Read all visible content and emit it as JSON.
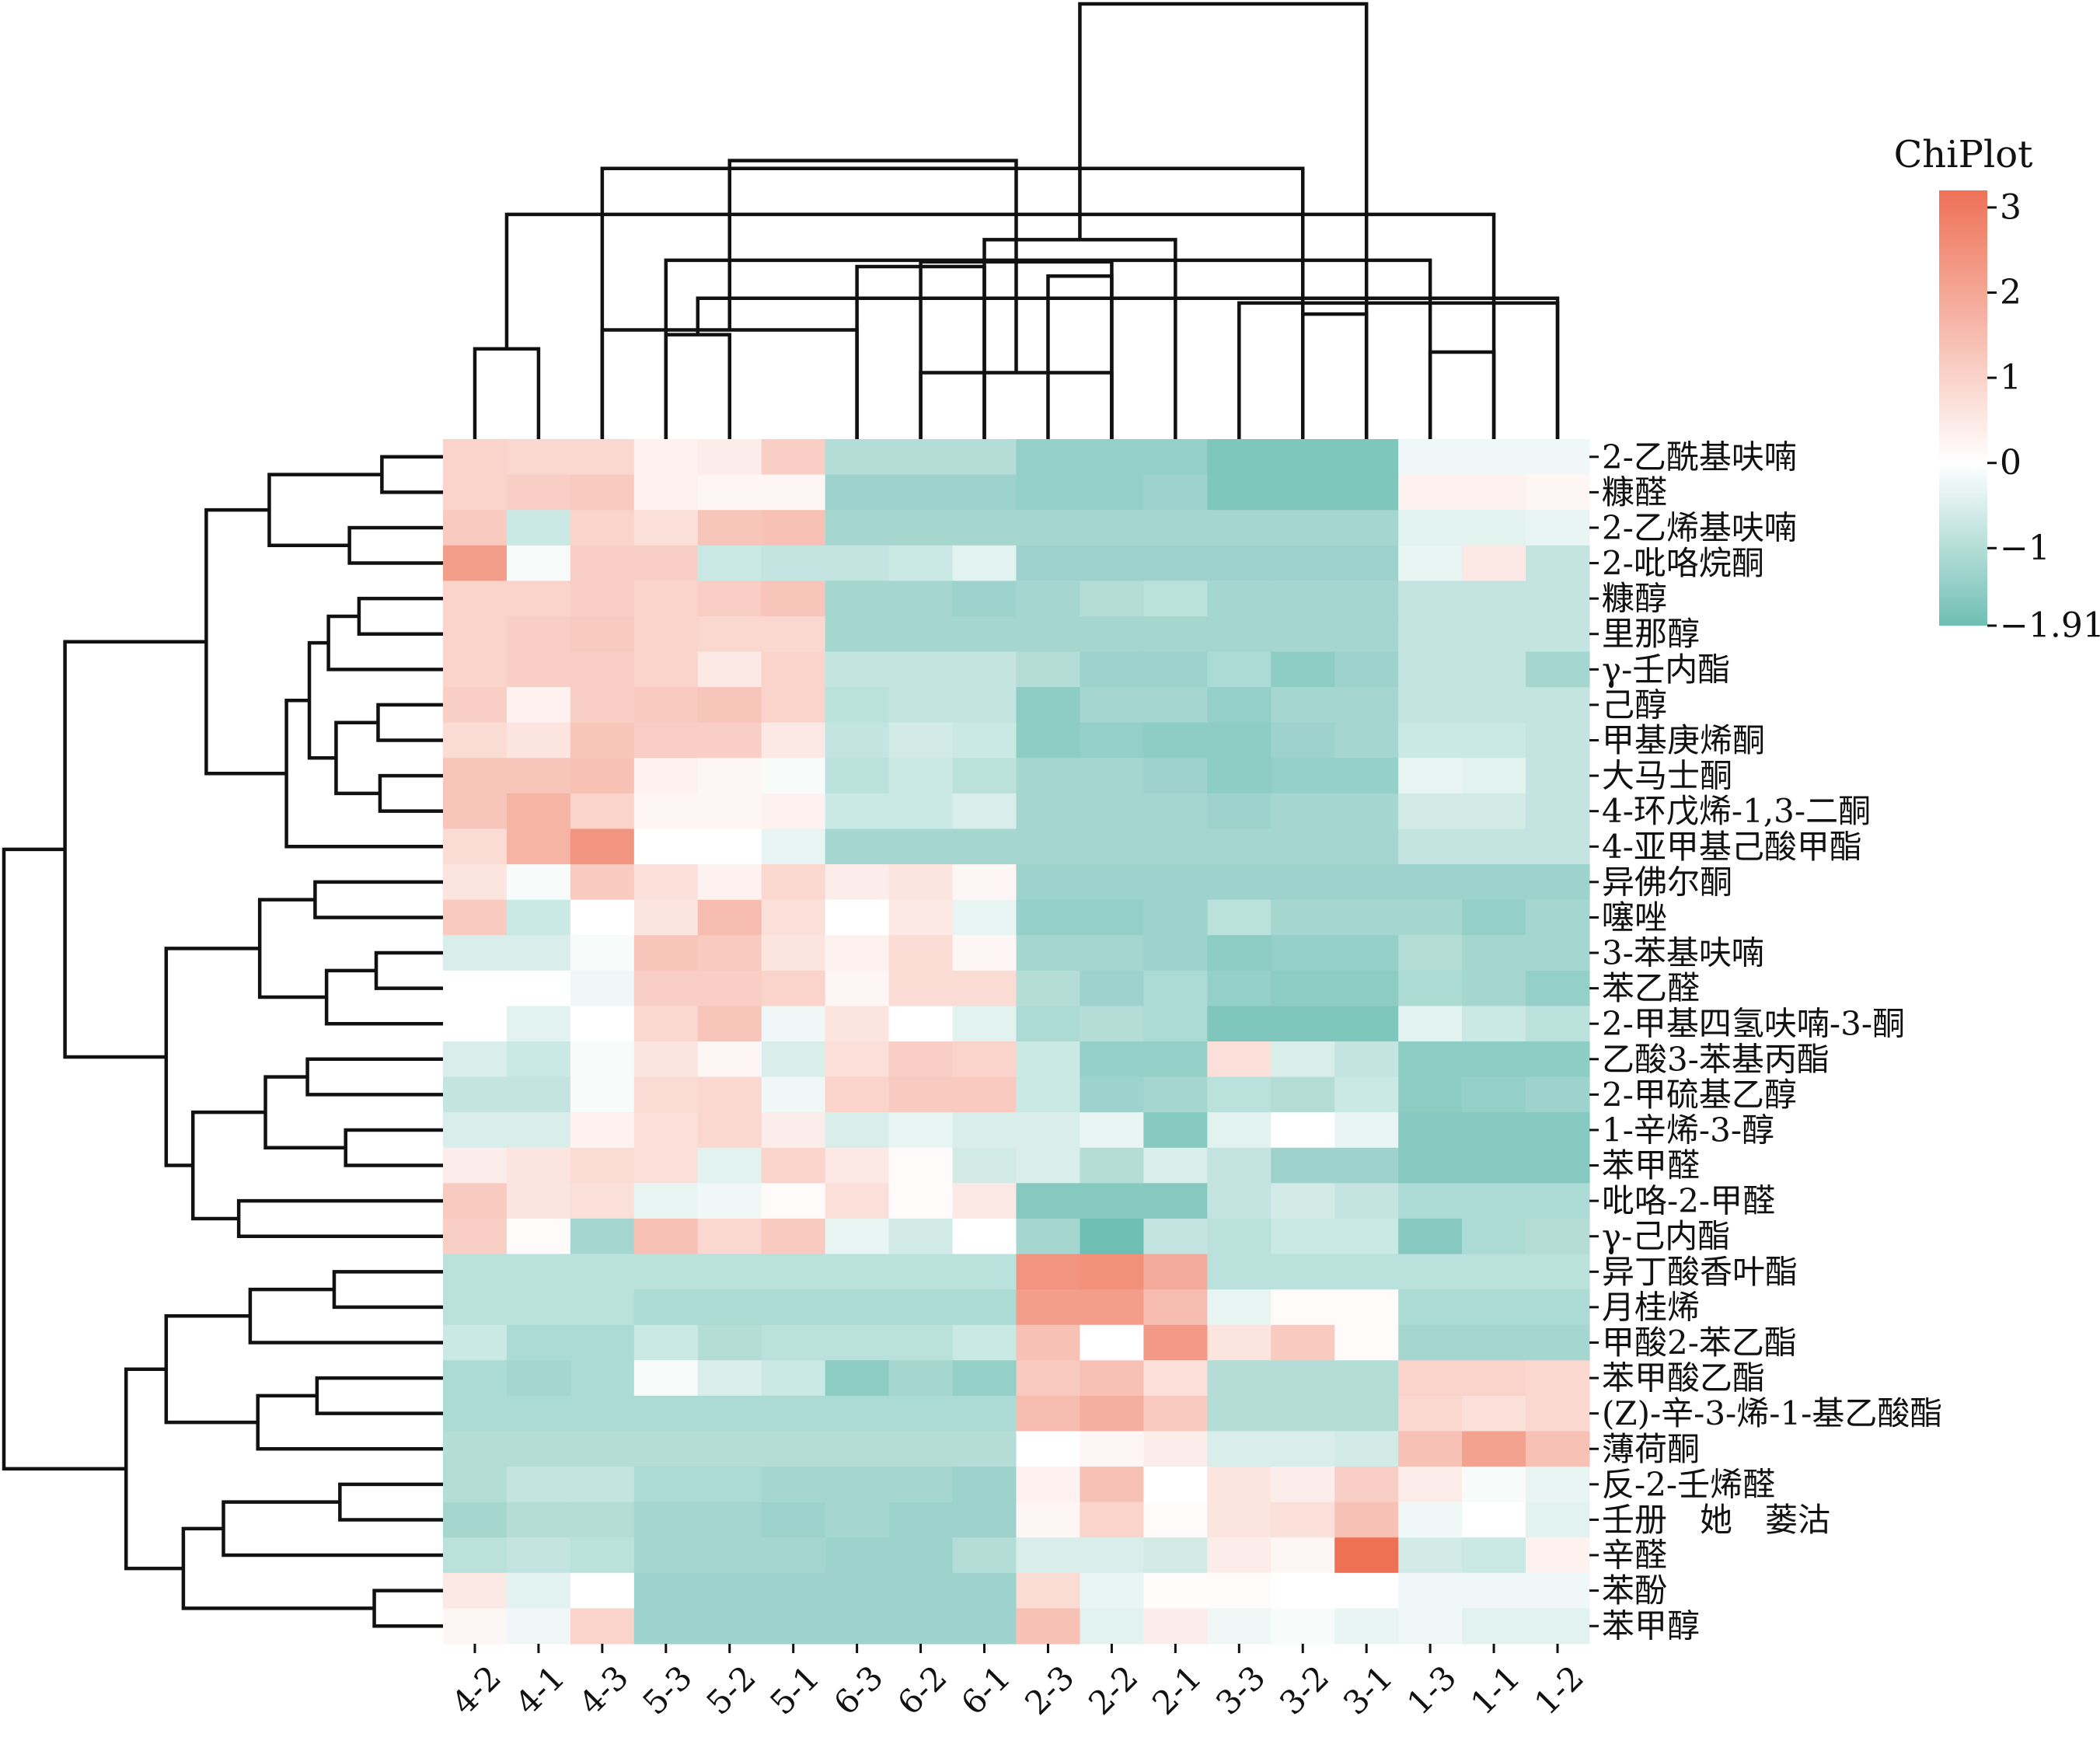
{
  "chart_data": {
    "type": "heatmap",
    "title": "",
    "columns": [
      "4-2",
      "4-1",
      "4-3",
      "5-3",
      "5-2",
      "5-1",
      "6-3",
      "6-2",
      "6-1",
      "2-3",
      "2-2",
      "2-1",
      "3-3",
      "3-2",
      "3-1",
      "1-3",
      "1-1",
      "1-2"
    ],
    "rows": [
      "2-乙酰基呋喃",
      "糠醛",
      "2-乙烯基呋喃",
      "2-吡咯烷酮",
      "糠醇",
      "里那醇",
      "γ-壬内酯",
      "己醇",
      "甲基庚烯酮",
      "大马士酮",
      "4-环戊烯-1,3-二酮",
      "4-亚甲基己酸甲酯",
      "异佛尔酮",
      "噻唑",
      "3-苯基呋喃",
      "苯乙醛",
      "2-甲基四氢呋喃-3-酮",
      "乙酸3-苯基丙酯",
      "2-甲硫基乙醇",
      "1-辛烯-3-醇",
      "苯甲醛",
      "吡咯-2-甲醛",
      "γ-己内酯",
      "异丁酸香叶酯",
      "月桂烯",
      "甲酸2-苯乙酯",
      "苯甲酸乙酯",
      "(Z)-辛-3-烯-1-基乙酸酯",
      "薄荷酮",
      "反-2-壬烯醛",
      "壬册　她　蒌沽",
      "辛醛",
      "苯酚",
      "苯甲醇"
    ],
    "values": [
      [
        1.0,
        0.9,
        0.9,
        0.3,
        0.4,
        1.1,
        -1.0,
        -1.0,
        -1.0,
        -1.4,
        -1.4,
        -1.4,
        -1.7,
        -1.7,
        -1.7,
        -0.2,
        -0.2,
        -0.2
      ],
      [
        1.0,
        1.1,
        1.2,
        0.3,
        0.2,
        0.2,
        -1.3,
        -1.3,
        -1.3,
        -1.4,
        -1.4,
        -1.3,
        -1.7,
        -1.7,
        -1.7,
        0.3,
        0.3,
        0.2
      ],
      [
        1.2,
        -0.7,
        1.0,
        0.7,
        1.3,
        1.4,
        -1.2,
        -1.2,
        -1.2,
        -1.2,
        -1.2,
        -1.2,
        -1.2,
        -1.2,
        -1.2,
        -0.4,
        -0.4,
        -0.3
      ],
      [
        2.2,
        -0.1,
        1.1,
        1.1,
        -0.7,
        -0.8,
        -0.8,
        -0.7,
        -0.4,
        -1.3,
        -1.3,
        -1.3,
        -1.3,
        -1.3,
        -1.3,
        -0.3,
        0.5,
        -0.8
      ],
      [
        1.0,
        1.0,
        1.1,
        1.0,
        1.1,
        1.3,
        -1.2,
        -1.2,
        -1.3,
        -1.2,
        -1.0,
        -0.9,
        -1.2,
        -1.2,
        -1.2,
        -0.8,
        -0.8,
        -0.8
      ],
      [
        1.0,
        1.1,
        1.2,
        1.0,
        0.9,
        0.9,
        -1.2,
        -1.2,
        -1.2,
        -1.2,
        -1.2,
        -1.2,
        -1.2,
        -1.2,
        -1.2,
        -0.8,
        -0.8,
        -0.8
      ],
      [
        1.0,
        1.1,
        1.1,
        1.0,
        0.5,
        1.0,
        -0.8,
        -0.8,
        -0.8,
        -1.0,
        -1.3,
        -1.3,
        -1.1,
        -1.5,
        -1.3,
        -0.8,
        -0.8,
        -1.2
      ],
      [
        1.1,
        0.3,
        1.1,
        1.2,
        1.3,
        1.0,
        -0.9,
        -0.8,
        -0.8,
        -1.5,
        -1.2,
        -1.2,
        -1.4,
        -1.2,
        -1.2,
        -0.8,
        -0.8,
        -0.8
      ],
      [
        0.8,
        0.6,
        1.3,
        1.1,
        1.1,
        0.5,
        -0.8,
        -0.6,
        -0.7,
        -1.5,
        -1.4,
        -1.5,
        -1.5,
        -1.3,
        -1.2,
        -0.7,
        -0.7,
        -0.8
      ],
      [
        1.3,
        1.3,
        1.4,
        0.3,
        0.2,
        -0.1,
        -0.9,
        -0.7,
        -0.9,
        -1.2,
        -1.2,
        -1.3,
        -1.5,
        -1.4,
        -1.4,
        -0.3,
        -0.4,
        -0.8
      ],
      [
        1.3,
        1.7,
        1.0,
        0.2,
        0.2,
        0.3,
        -0.7,
        -0.7,
        -0.5,
        -1.2,
        -1.2,
        -1.2,
        -1.3,
        -1.2,
        -1.2,
        -0.6,
        -0.6,
        -0.8
      ],
      [
        0.8,
        1.7,
        2.4,
        0.0,
        0.0,
        -0.3,
        -1.2,
        -1.2,
        -1.2,
        -1.2,
        -1.2,
        -1.2,
        -1.2,
        -1.2,
        -1.2,
        -0.8,
        -0.8,
        -0.8
      ],
      [
        0.6,
        -0.1,
        1.2,
        0.7,
        0.3,
        0.9,
        0.4,
        0.6,
        0.2,
        -1.3,
        -1.3,
        -1.3,
        -1.3,
        -1.3,
        -1.3,
        -1.3,
        -1.3,
        -1.3
      ],
      [
        1.2,
        -0.7,
        0.0,
        0.6,
        1.5,
        0.7,
        0.0,
        0.5,
        -0.3,
        -1.4,
        -1.4,
        -1.3,
        -0.9,
        -1.2,
        -1.2,
        -1.2,
        -1.4,
        -1.2
      ],
      [
        -0.5,
        -0.5,
        -0.1,
        1.3,
        1.2,
        0.6,
        0.3,
        0.8,
        0.2,
        -1.2,
        -1.2,
        -1.3,
        -1.5,
        -1.4,
        -1.4,
        -1.0,
        -1.2,
        -1.2
      ],
      [
        0.0,
        0.0,
        -0.2,
        1.1,
        1.1,
        1.0,
        0.2,
        0.8,
        0.8,
        -1.0,
        -1.3,
        -1.1,
        -1.4,
        -1.5,
        -1.5,
        -1.1,
        -1.2,
        -1.4
      ],
      [
        0.0,
        -0.4,
        0.0,
        0.9,
        1.3,
        -0.2,
        0.6,
        0.0,
        -0.4,
        -1.1,
        -1.0,
        -1.1,
        -1.7,
        -1.7,
        -1.7,
        -0.4,
        -0.7,
        -0.9
      ],
      [
        -0.5,
        -0.7,
        -0.1,
        0.6,
        0.2,
        -0.5,
        0.7,
        1.1,
        1.0,
        -0.7,
        -1.4,
        -1.4,
        0.7,
        -0.5,
        -0.8,
        -1.5,
        -1.5,
        -1.5
      ],
      [
        -0.8,
        -0.8,
        -0.1,
        0.8,
        0.9,
        -0.2,
        1.0,
        1.2,
        1.2,
        -0.7,
        -1.3,
        -1.2,
        -0.9,
        -1.0,
        -0.7,
        -1.5,
        -1.4,
        -1.3
      ],
      [
        -0.5,
        -0.5,
        0.3,
        0.7,
        0.9,
        0.4,
        -0.5,
        -0.3,
        -0.5,
        -0.5,
        -0.3,
        -1.6,
        -0.4,
        0.0,
        -0.3,
        -1.6,
        -1.6,
        -1.6
      ],
      [
        0.4,
        0.6,
        0.8,
        0.7,
        -0.4,
        1.0,
        0.5,
        0.1,
        -0.6,
        -0.5,
        -1.0,
        -0.5,
        -0.8,
        -1.3,
        -1.3,
        -1.6,
        -1.6,
        -1.6
      ],
      [
        1.2,
        0.6,
        0.7,
        -0.3,
        -0.2,
        0.1,
        0.7,
        0.1,
        0.5,
        -1.6,
        -1.6,
        -1.6,
        -0.8,
        -0.6,
        -0.8,
        -1.1,
        -1.1,
        -1.1
      ],
      [
        1.1,
        0.1,
        -1.2,
        1.4,
        0.9,
        1.2,
        -0.3,
        -0.6,
        0.0,
        -1.2,
        -1.9,
        -0.8,
        -0.9,
        -0.7,
        -0.7,
        -1.6,
        -1.1,
        -1.0
      ],
      [
        -0.9,
        -0.9,
        -0.9,
        -0.9,
        -0.9,
        -0.9,
        -0.9,
        -0.9,
        -0.9,
        2.4,
        2.5,
        1.9,
        -0.9,
        -0.9,
        -0.9,
        -0.9,
        -0.9,
        -0.9
      ],
      [
        -0.9,
        -0.9,
        -0.9,
        -1.1,
        -1.1,
        -1.1,
        -1.1,
        -1.1,
        -1.1,
        2.2,
        2.2,
        1.5,
        -0.3,
        0.1,
        0.1,
        -1.1,
        -1.1,
        -1.1
      ],
      [
        -0.7,
        -1.1,
        -1.1,
        -0.7,
        -1.0,
        -0.9,
        -0.9,
        -0.9,
        -0.7,
        1.4,
        0.0,
        2.3,
        0.6,
        1.2,
        0.1,
        -1.2,
        -1.2,
        -1.2
      ],
      [
        -1.1,
        -1.2,
        -1.1,
        -0.1,
        -0.5,
        -0.7,
        -1.5,
        -1.2,
        -1.4,
        1.2,
        1.4,
        0.7,
        -1.0,
        -1.0,
        -1.0,
        1.0,
        1.0,
        0.9
      ],
      [
        -1.1,
        -1.1,
        -1.1,
        -1.1,
        -1.1,
        -1.1,
        -1.1,
        -1.1,
        -1.1,
        1.5,
        1.8,
        1.2,
        -1.0,
        -1.0,
        -1.0,
        0.9,
        0.7,
        0.9
      ],
      [
        -1.0,
        -1.0,
        -1.0,
        -1.0,
        -1.0,
        -1.0,
        -1.0,
        -1.0,
        -1.0,
        0.0,
        0.2,
        0.4,
        -0.5,
        -0.5,
        -0.6,
        1.4,
        2.1,
        1.4
      ],
      [
        -1.0,
        -0.8,
        -0.8,
        -1.1,
        -1.1,
        -1.2,
        -1.2,
        -1.2,
        -1.3,
        0.3,
        1.4,
        0.0,
        0.6,
        0.4,
        1.1,
        0.4,
        -0.1,
        -0.3
      ],
      [
        -1.2,
        -1.0,
        -1.0,
        -1.2,
        -1.2,
        -1.3,
        -1.2,
        -1.3,
        -1.3,
        0.2,
        1.0,
        0.1,
        0.6,
        0.7,
        1.4,
        -0.2,
        0.0,
        -0.4
      ],
      [
        -0.9,
        -0.8,
        -0.9,
        -1.2,
        -1.2,
        -1.2,
        -1.3,
        -1.3,
        -1.0,
        -0.5,
        -0.5,
        -0.6,
        0.4,
        0.2,
        3.2,
        -0.6,
        -0.7,
        0.3
      ],
      [
        0.5,
        -0.4,
        0.0,
        -1.3,
        -1.3,
        -1.3,
        -1.3,
        -1.3,
        -1.3,
        0.8,
        -0.3,
        0.1,
        0.1,
        0.0,
        0.0,
        -0.2,
        -0.2,
        -0.2
      ],
      [
        0.2,
        -0.2,
        1.0,
        -1.3,
        -1.3,
        -1.3,
        -1.3,
        -1.3,
        -1.3,
        1.4,
        -0.4,
        0.4,
        -0.2,
        -0.1,
        -0.3,
        -0.2,
        -0.4,
        -0.4
      ]
    ],
    "colormap": {
      "low": "#6fbfb4",
      "mid": "#ffffff",
      "high": "#ee7156",
      "min": -1.91,
      "max": 3.2
    },
    "legend": {
      "title": "ChiPlot",
      "ticks": [
        {
          "value": 3,
          "label": "3"
        },
        {
          "value": 2,
          "label": "2"
        },
        {
          "value": 1,
          "label": "1"
        },
        {
          "value": 0,
          "label": "0"
        },
        {
          "value": -1,
          "label": "−1"
        },
        {
          "value": -1.91,
          "label": "−1.91"
        }
      ],
      "placement": "top-right"
    },
    "col_dendrogram": [
      [
        0,
        1,
        5.7,
        2
      ],
      [
        6,
        2,
        6.9,
        3
      ],
      [
        3,
        4,
        6.6,
        2
      ],
      [
        7,
        10,
        4.2,
        3
      ],
      [
        11,
        8,
        12.6,
        6
      ],
      [
        6,
        8,
        10.9,
        2
      ],
      [
        7,
        10,
        11.2,
        3
      ],
      [
        2,
        13,
        17.1,
        9
      ],
      [
        9,
        10,
        10.3,
        2
      ],
      [
        3,
        15,
        11.3,
        3
      ],
      [
        13,
        14,
        7.9,
        2
      ],
      [
        12,
        17,
        8.6,
        3
      ],
      [
        16,
        18,
        14.2,
        6
      ],
      [
        15,
        16,
        5.5,
        2
      ],
      [
        17,
        20,
        8.9,
        3
      ],
      [
        19,
        21,
        17.6,
        9
      ],
      [
        14,
        22,
        27.5,
        18
      ]
    ],
    "row_dendrogram": [
      [
        0,
        1,
        3.2,
        2
      ],
      [
        2,
        3,
        4.9,
        2
      ],
      [
        34,
        35,
        9.1,
        4
      ],
      [
        4,
        5,
        4.4,
        2
      ],
      [
        6,
        37,
        6.0,
        3
      ],
      [
        7,
        8,
        3.4,
        2
      ],
      [
        9,
        10,
        3.3,
        2
      ],
      [
        39,
        40,
        5.6,
        4
      ],
      [
        38,
        41,
        7.0,
        7
      ],
      [
        11,
        42,
        8.2,
        8
      ],
      [
        36,
        43,
        12.4,
        12
      ],
      [
        12,
        13,
        6.7,
        2
      ],
      [
        14,
        15,
        3.5,
        2
      ],
      [
        46,
        16,
        6.1,
        3
      ],
      [
        45,
        47,
        9.6,
        5
      ],
      [
        17,
        18,
        7.1,
        2
      ],
      [
        19,
        20,
        5.1,
        2
      ],
      [
        49,
        50,
        9.3,
        4
      ],
      [
        21,
        22,
        10.7,
        2
      ],
      [
        51,
        52,
        13.1,
        6
      ],
      [
        48,
        53,
        14.5,
        11
      ],
      [
        44,
        54,
        19.8,
        23
      ],
      [
        23,
        24,
        5.7,
        2
      ],
      [
        56,
        25,
        10.1,
        3
      ],
      [
        26,
        27,
        6.6,
        2
      ],
      [
        58,
        28,
        9.7,
        3
      ],
      [
        57,
        59,
        14.5,
        6
      ],
      [
        29,
        30,
        5.4,
        2
      ],
      [
        61,
        31,
        11.5,
        3
      ],
      [
        32,
        33,
        3.6,
        2
      ],
      [
        62,
        63,
        13.6,
        5
      ],
      [
        60,
        64,
        16.6,
        11
      ],
      [
        55,
        65,
        23.0,
        34
      ]
    ]
  }
}
